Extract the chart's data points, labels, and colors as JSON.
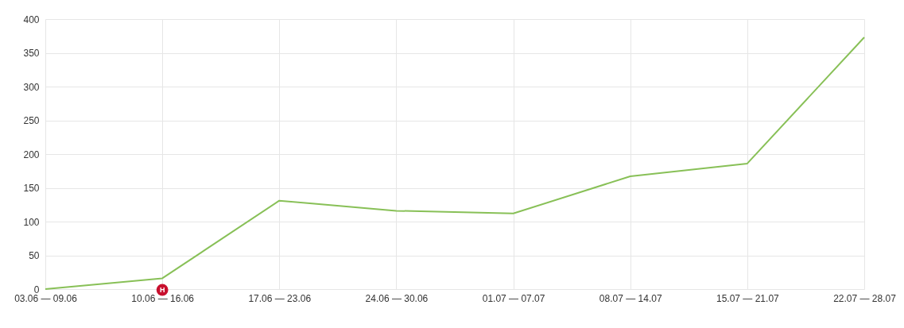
{
  "chart_data": {
    "type": "line",
    "categories": [
      "03.06 — 09.06",
      "10.06 — 16.06",
      "17.06 — 23.06",
      "24.06 — 30.06",
      "01.07 — 07.07",
      "08.07 — 14.07",
      "15.07 — 21.07",
      "22.07 — 28.07"
    ],
    "series": [
      {
        "color": "#88c057",
        "values": [
          0,
          16,
          131,
          116,
          112,
          167,
          186,
          373
        ]
      }
    ],
    "ylim": [
      0,
      400
    ],
    "yticks": [
      0,
      50,
      100,
      150,
      200,
      250,
      300,
      350,
      400
    ],
    "grid": true,
    "annotations": [
      {
        "text": "H",
        "x": "10.06 — 16.06",
        "y": 0
      }
    ]
  }
}
